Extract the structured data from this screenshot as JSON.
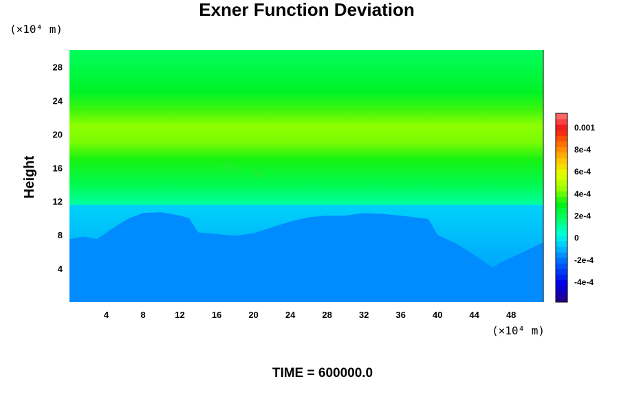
{
  "chart_data": {
    "type": "heatmap",
    "title": "Exner Function Deviation",
    "ylabel": "Height",
    "x_units": "(×10⁴ m)",
    "y_units": "(×10⁴ m)",
    "xlim": [
      0,
      51.5
    ],
    "ylim": [
      0,
      30
    ],
    "x_ticks": [
      "4",
      "8",
      "12",
      "16",
      "20",
      "24",
      "28",
      "32",
      "36",
      "40",
      "44",
      "48"
    ],
    "y_ticks": [
      "4",
      "8",
      "12",
      "16",
      "20",
      "24",
      "28"
    ],
    "footer": "TIME = 600000.0",
    "colorbar": {
      "range": [
        -0.00058,
        0.00113
      ],
      "tick_labels": [
        "0.001",
        "8e-4",
        "6e-4",
        "4e-4",
        "2e-4",
        "0",
        "-2e-4",
        "-4e-4"
      ],
      "tick_values": [
        0.001,
        0.0008,
        0.0006,
        0.0004,
        0.0002,
        0,
        -0.0002,
        -0.0004
      ]
    },
    "vertical_profile": [
      {
        "height": 0,
        "value": -0.00015
      },
      {
        "height": 11.5,
        "value": -5e-05
      },
      {
        "height": 14,
        "value": 0.00022
      },
      {
        "height": 17,
        "value": 0.00033
      },
      {
        "height": 19,
        "value": 0.00042
      },
      {
        "height": 21,
        "value": 0.00044
      },
      {
        "height": 23,
        "value": 0.00036
      },
      {
        "height": 25,
        "value": 0.00028
      },
      {
        "height": 28,
        "value": 0.00023
      },
      {
        "height": 30,
        "value": 0.0002
      }
    ],
    "lower_region_boundary": [
      {
        "x": 0,
        "height": 7.5
      },
      {
        "x": 1.5,
        "height": 7.8
      },
      {
        "x": 3,
        "height": 7.5
      },
      {
        "x": 5,
        "height": 9
      },
      {
        "x": 6.5,
        "height": 10
      },
      {
        "x": 8,
        "height": 10.6
      },
      {
        "x": 10,
        "height": 10.7
      },
      {
        "x": 12,
        "height": 10.3
      },
      {
        "x": 13,
        "height": 10
      },
      {
        "x": 14,
        "height": 8.3
      },
      {
        "x": 16,
        "height": 8.1
      },
      {
        "x": 18,
        "height": 7.9
      },
      {
        "x": 20,
        "height": 8.2
      },
      {
        "x": 22,
        "height": 8.9
      },
      {
        "x": 24,
        "height": 9.6
      },
      {
        "x": 26,
        "height": 10.1
      },
      {
        "x": 28,
        "height": 10.3
      },
      {
        "x": 30,
        "height": 10.3
      },
      {
        "x": 32,
        "height": 10.6
      },
      {
        "x": 34,
        "height": 10.5
      },
      {
        "x": 36,
        "height": 10.3
      },
      {
        "x": 39,
        "height": 9.9
      },
      {
        "x": 40,
        "height": 8
      },
      {
        "x": 42,
        "height": 7
      },
      {
        "x": 44,
        "height": 5.6
      },
      {
        "x": 46,
        "height": 4.1
      },
      {
        "x": 47,
        "height": 4.8
      },
      {
        "x": 49,
        "height": 5.8
      },
      {
        "x": 51.5,
        "height": 7.1
      }
    ],
    "lower_region_value": -0.00016
  }
}
